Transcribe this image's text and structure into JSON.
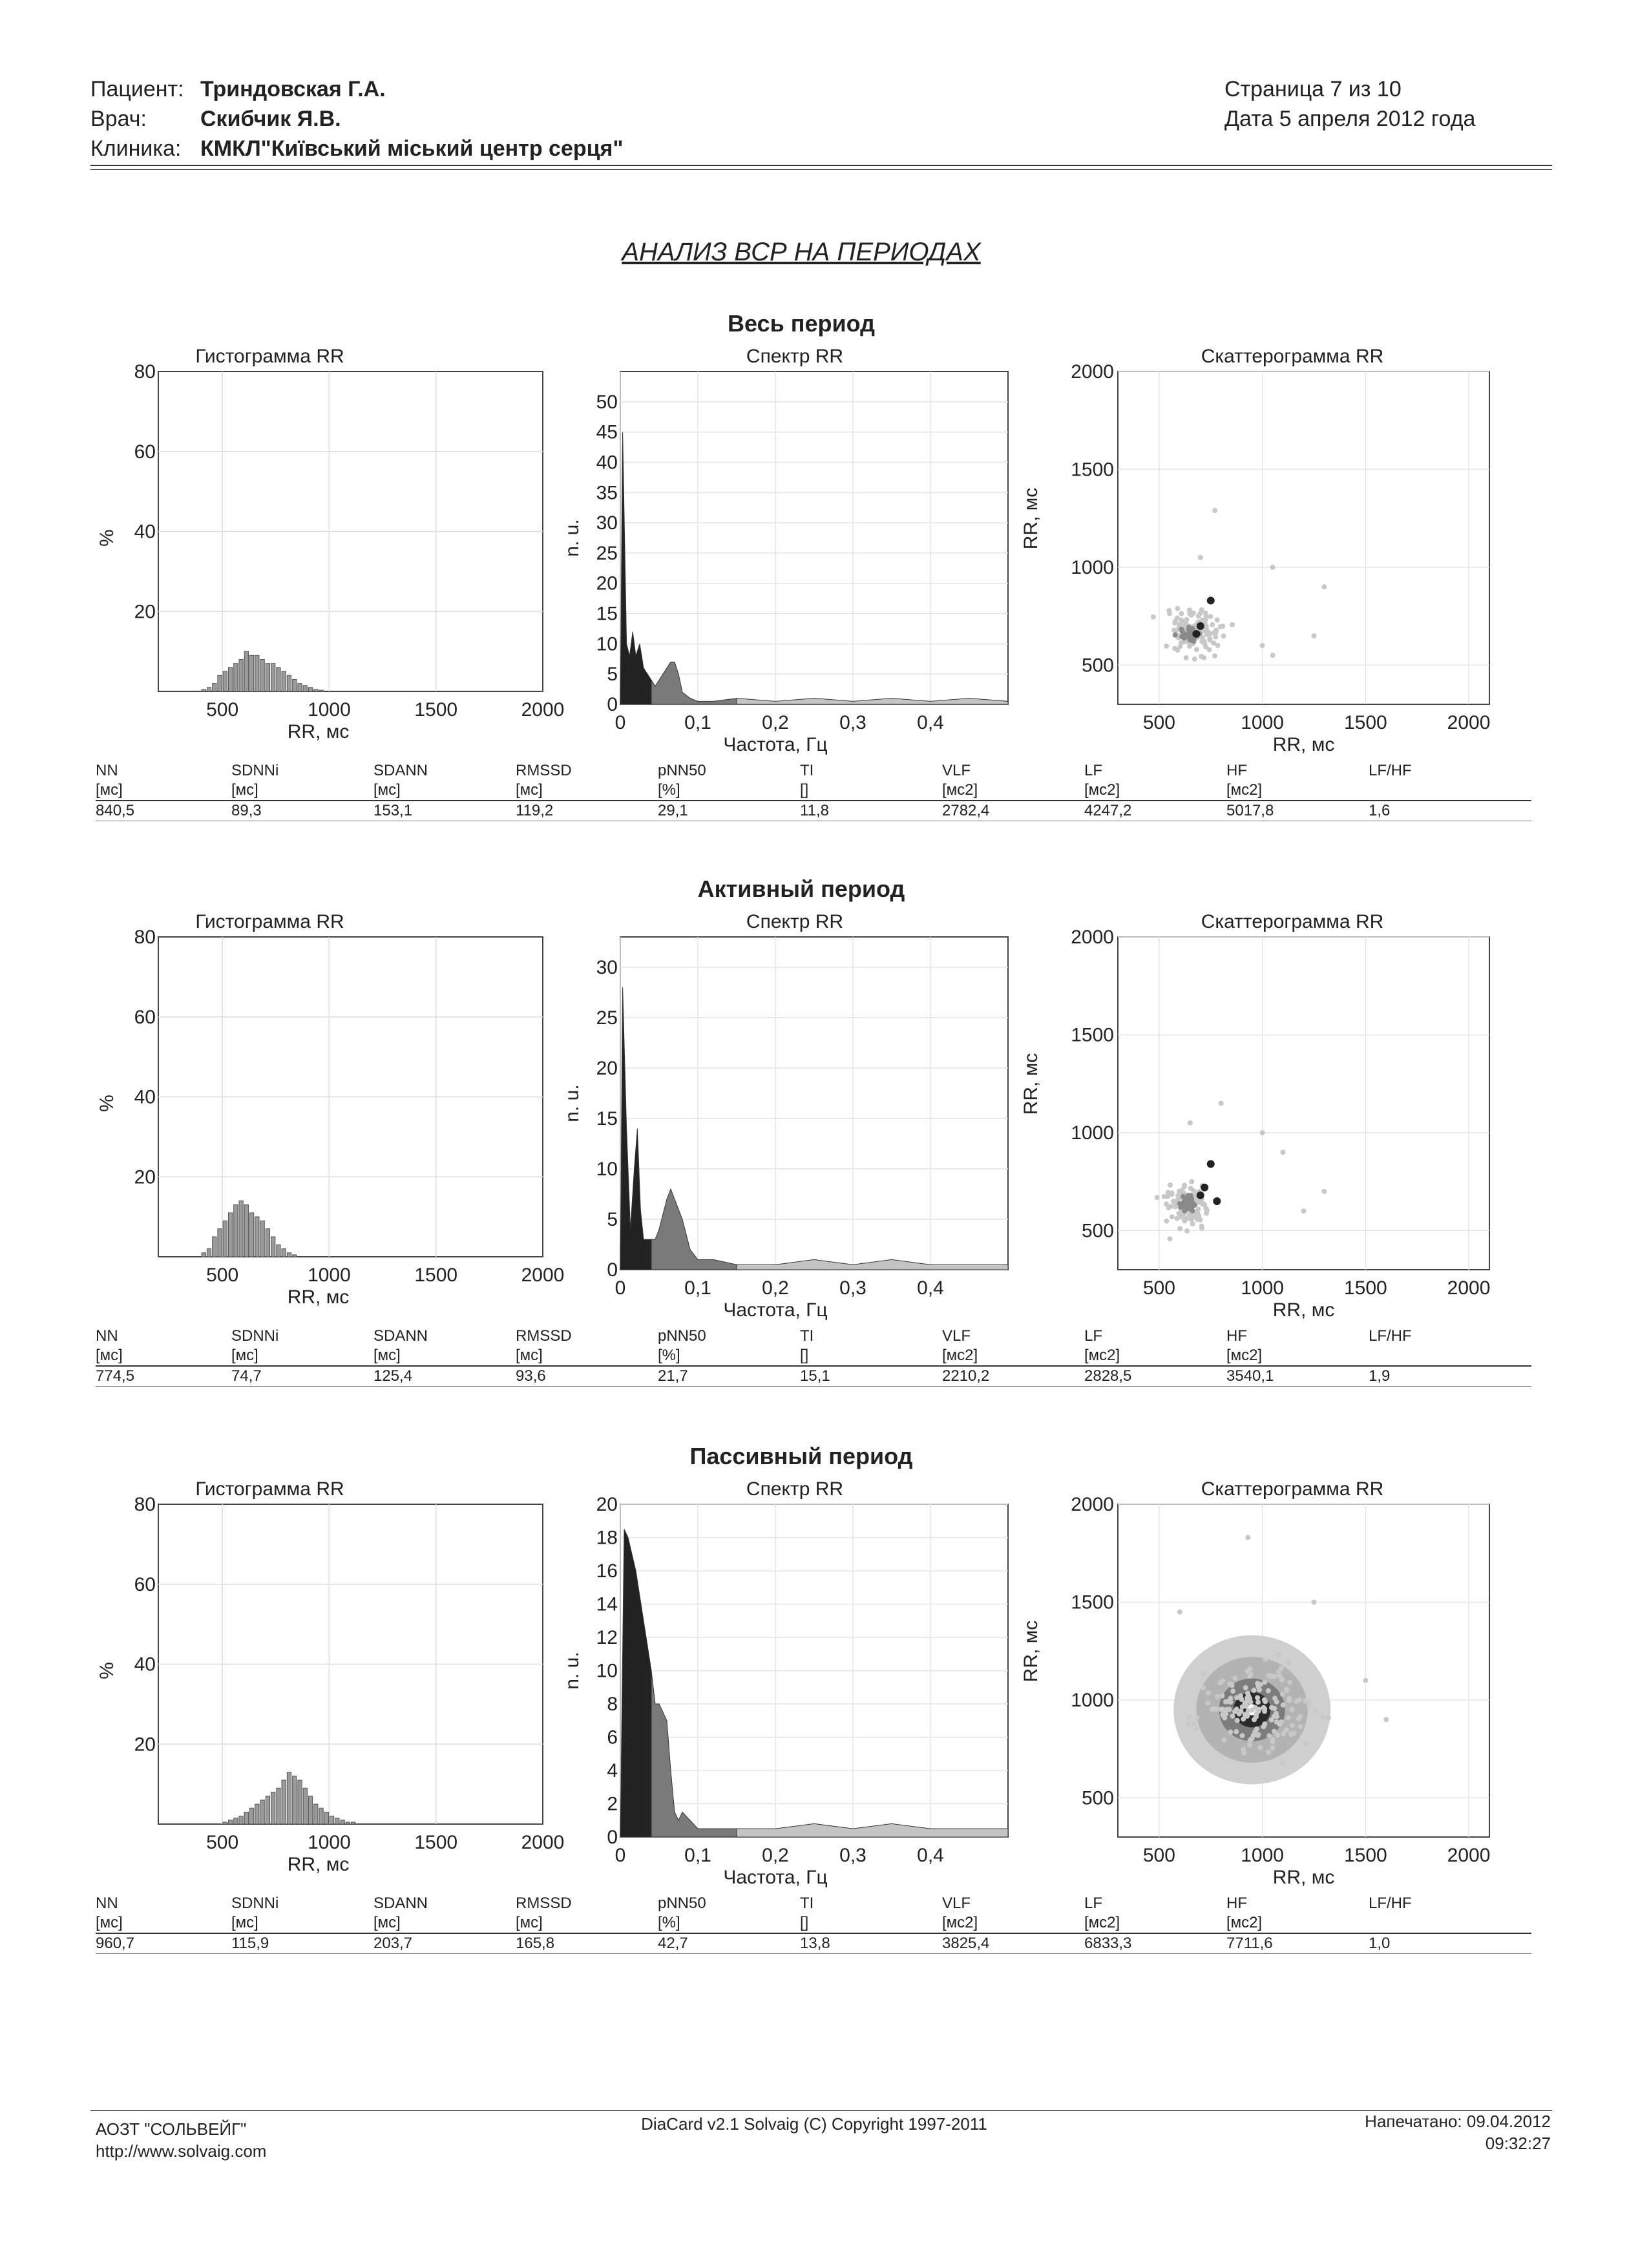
{
  "header": {
    "patient_label": "Пациент:",
    "patient": "Триндовская Г.А.",
    "doctor_label": "Врач:",
    "doctor": "Скибчик Я.В.",
    "clinic_label": "Клиника:",
    "clinic": "КМКЛ\"Київський міський центр серця\"",
    "page": "Страница 7 из 10",
    "date": "Дата 5 апреля 2012 года"
  },
  "title": "АНАЛИЗ ВСР НА ПЕРИОДАХ",
  "chart_titles": {
    "histogram": "Гистограмма RR",
    "spectrum": "Спектр RR",
    "scatter": "Скаттерограмма RR"
  },
  "axis_labels": {
    "hist_x": "RR, мс",
    "hist_y": "%",
    "spec_x": "Частота, Гц",
    "spec_y": "n. u.",
    "scat_x": "RR, мс",
    "scat_y": "RR, мс"
  },
  "stats_headers": [
    "NN",
    "SDNNi",
    "SDANN",
    "RMSSD",
    "pNN50",
    "TI",
    "VLF",
    "LF",
    "HF",
    "LF/HF"
  ],
  "stats_units": [
    "[мс]",
    "[мс]",
    "[мс]",
    "[мс]",
    "[%]",
    "[]",
    "[мс2]",
    "[мс2]",
    "[мс2]",
    ""
  ],
  "sections": [
    {
      "title": "Весь период",
      "stats": [
        "840,5",
        "89,3",
        "153,1",
        "119,2",
        "29,1",
        "11,8",
        "2782,4",
        "4247,2",
        "5017,8",
        "1,6"
      ]
    },
    {
      "title": "Активный период",
      "stats": [
        "774,5",
        "74,7",
        "125,4",
        "93,6",
        "21,7",
        "15,1",
        "2210,2",
        "2828,5",
        "3540,1",
        "1,9"
      ]
    },
    {
      "title": "Пассивный период",
      "stats": [
        "960,7",
        "115,9",
        "203,7",
        "165,8",
        "42,7",
        "13,8",
        "3825,4",
        "6833,3",
        "7711,6",
        "1,0"
      ]
    }
  ],
  "chart_data": [
    {
      "type": "bar",
      "chart": "histogram",
      "section": "Весь период",
      "xlim": [
        200,
        2000
      ],
      "ylim": [
        0,
        80
      ],
      "xticks": [
        500,
        1000,
        1500,
        2000
      ],
      "yticks": [
        20,
        40,
        60,
        80
      ],
      "bins_start": 400,
      "bin_width": 25,
      "values": [
        0.5,
        1,
        2,
        4,
        5,
        6,
        7,
        8,
        10,
        9,
        9,
        8,
        7,
        7,
        6,
        5,
        4,
        3,
        2,
        1.5,
        1,
        0.5,
        0.3
      ]
    },
    {
      "type": "area",
      "chart": "spectrum",
      "section": "Весь период",
      "xlim": [
        0,
        0.5
      ],
      "ylim": [
        0,
        55
      ],
      "xticks": [
        0,
        0.1,
        0.2,
        0.3,
        0.4
      ],
      "yticks": [
        0,
        5,
        10,
        15,
        20,
        25,
        30,
        35,
        40,
        45,
        50
      ],
      "x": [
        0,
        0.003,
        0.008,
        0.012,
        0.016,
        0.02,
        0.025,
        0.03,
        0.035,
        0.04,
        0.045,
        0.05,
        0.055,
        0.06,
        0.065,
        0.07,
        0.075,
        0.08,
        0.09,
        0.1,
        0.12,
        0.15,
        0.2,
        0.25,
        0.3,
        0.35,
        0.4,
        0.45,
        0.5
      ],
      "y": [
        0,
        45,
        10,
        8,
        12,
        8,
        10,
        6,
        5,
        4,
        3,
        4,
        5,
        6,
        7,
        7,
        5,
        2,
        1,
        0.5,
        0.5,
        1,
        0.5,
        1,
        0.5,
        1,
        0.5,
        1,
        0.5
      ],
      "bands": {
        "vlf": [
          0,
          0.04
        ],
        "lf": [
          0.04,
          0.15
        ],
        "hf": [
          0.15,
          0.5
        ]
      }
    },
    {
      "type": "scatter",
      "chart": "scatter",
      "section": "Весь период",
      "xlim": [
        300,
        2100
      ],
      "ylim": [
        300,
        2000
      ],
      "xticks": [
        500,
        1000,
        1500,
        2000
      ],
      "yticks": [
        500,
        1000,
        1500,
        2000
      ],
      "clusters": [
        {
          "cx": 680,
          "cy": 670,
          "sx": 90,
          "sy": 90,
          "n": 120,
          "shade": "light"
        },
        {
          "cx": 650,
          "cy": 650,
          "sx": 30,
          "sy": 30,
          "n": 30,
          "shade": "mid"
        }
      ],
      "points": [
        [
          750,
          830,
          "dark"
        ],
        [
          700,
          700,
          "dark"
        ],
        [
          680,
          660,
          "dark"
        ],
        [
          1050,
          1000,
          "light"
        ],
        [
          1300,
          900,
          "light"
        ],
        [
          1250,
          650,
          "light"
        ],
        [
          700,
          1050,
          "light"
        ],
        [
          770,
          1290,
          "light"
        ],
        [
          1000,
          600,
          "light"
        ],
        [
          1050,
          550,
          "light"
        ]
      ]
    },
    {
      "type": "bar",
      "chart": "histogram",
      "section": "Активный период",
      "xlim": [
        200,
        2000
      ],
      "ylim": [
        0,
        80
      ],
      "xticks": [
        500,
        1000,
        1500,
        2000
      ],
      "yticks": [
        20,
        40,
        60,
        80
      ],
      "bins_start": 400,
      "bin_width": 25,
      "values": [
        1,
        2,
        5,
        7,
        9,
        11,
        13,
        14,
        13,
        11,
        10,
        9,
        7,
        5,
        3,
        2,
        1,
        0.5
      ]
    },
    {
      "type": "area",
      "chart": "spectrum",
      "section": "Активный период",
      "xlim": [
        0,
        0.5
      ],
      "ylim": [
        0,
        33
      ],
      "xticks": [
        0,
        0.1,
        0.2,
        0.3,
        0.4
      ],
      "yticks": [
        0,
        5,
        10,
        15,
        20,
        25,
        30
      ],
      "x": [
        0,
        0.003,
        0.008,
        0.013,
        0.018,
        0.022,
        0.026,
        0.03,
        0.035,
        0.04,
        0.045,
        0.05,
        0.06,
        0.065,
        0.07,
        0.08,
        0.09,
        0.1,
        0.12,
        0.15,
        0.2,
        0.25,
        0.3,
        0.35,
        0.4,
        0.45,
        0.5
      ],
      "y": [
        0,
        28,
        14,
        4,
        10,
        14,
        6,
        3,
        3,
        3,
        3,
        4,
        7,
        8,
        7,
        5,
        2,
        1,
        1,
        0.5,
        0.5,
        1,
        0.5,
        1,
        0.5,
        0.5,
        0.5
      ],
      "bands": {
        "vlf": [
          0,
          0.04
        ],
        "lf": [
          0.04,
          0.15
        ],
        "hf": [
          0.15,
          0.5
        ]
      }
    },
    {
      "type": "scatter",
      "chart": "scatter",
      "section": "Активный период",
      "xlim": [
        300,
        2100
      ],
      "ylim": [
        300,
        2000
      ],
      "xticks": [
        500,
        1000,
        1500,
        2000
      ],
      "yticks": [
        500,
        1000,
        1500,
        2000
      ],
      "clusters": [
        {
          "cx": 650,
          "cy": 630,
          "sx": 80,
          "sy": 80,
          "n": 110,
          "shade": "light"
        },
        {
          "cx": 640,
          "cy": 640,
          "sx": 25,
          "sy": 25,
          "n": 35,
          "shade": "mid"
        }
      ],
      "points": [
        [
          750,
          840,
          "dark"
        ],
        [
          700,
          680,
          "dark"
        ],
        [
          720,
          720,
          "dark"
        ],
        [
          780,
          650,
          "dark"
        ],
        [
          1000,
          1000,
          "light"
        ],
        [
          1100,
          900,
          "light"
        ],
        [
          650,
          1050,
          "light"
        ],
        [
          800,
          1150,
          "light"
        ],
        [
          1200,
          600,
          "light"
        ],
        [
          1300,
          700,
          "light"
        ]
      ]
    },
    {
      "type": "bar",
      "chart": "histogram",
      "section": "Пассивный период",
      "xlim": [
        200,
        2000
      ],
      "ylim": [
        0,
        80
      ],
      "xticks": [
        500,
        1000,
        1500,
        2000
      ],
      "yticks": [
        20,
        40,
        60,
        80
      ],
      "bins_start": 500,
      "bin_width": 25,
      "values": [
        0.5,
        1,
        1.5,
        2,
        3,
        4,
        5,
        6,
        7,
        8,
        9,
        11,
        13,
        12,
        11,
        9,
        7,
        5,
        4,
        3,
        2,
        1.5,
        1,
        0.5,
        0.5
      ]
    },
    {
      "type": "area",
      "chart": "spectrum",
      "section": "Пассивный период",
      "xlim": [
        0,
        0.5
      ],
      "ylim": [
        0,
        20
      ],
      "xticks": [
        0,
        0.1,
        0.2,
        0.3,
        0.4
      ],
      "yticks": [
        0,
        2,
        4,
        6,
        8,
        10,
        12,
        14,
        16,
        18,
        20
      ],
      "x": [
        0,
        0.005,
        0.01,
        0.02,
        0.03,
        0.04,
        0.045,
        0.05,
        0.06,
        0.065,
        0.07,
        0.075,
        0.08,
        0.09,
        0.1,
        0.12,
        0.15,
        0.2,
        0.25,
        0.3,
        0.35,
        0.4,
        0.45,
        0.5
      ],
      "y": [
        0,
        18.5,
        18,
        16,
        13,
        10,
        8,
        8,
        7,
        4,
        1.5,
        1,
        1.5,
        1,
        0.5,
        0.5,
        0.5,
        0.5,
        0.8,
        0.5,
        0.8,
        0.5,
        0.5,
        0.5
      ],
      "bands": {
        "vlf": [
          0,
          0.04
        ],
        "lf": [
          0.04,
          0.15
        ],
        "hf": [
          0.15,
          0.5
        ]
      }
    },
    {
      "type": "scatter",
      "chart": "scatter",
      "section": "Пассивный период",
      "xlim": [
        300,
        2100
      ],
      "ylim": [
        300,
        2000
      ],
      "xticks": [
        500,
        1000,
        1500,
        2000
      ],
      "yticks": [
        500,
        1000,
        1500,
        2000
      ],
      "density": {
        "cx": 950,
        "cy": 950,
        "rings": [
          {
            "r": 380,
            "shade": "#cfcfcf"
          },
          {
            "r": 270,
            "shade": "#b3b3b3"
          },
          {
            "r": 160,
            "shade": "#7c7c7c"
          },
          {
            "r": 90,
            "shade": "#2a2a2a"
          },
          {
            "r": 28,
            "shade": "#ffffff"
          }
        ]
      },
      "clusters": [
        {
          "cx": 960,
          "cy": 960,
          "sx": 190,
          "sy": 150,
          "n": 160,
          "shade": "light"
        }
      ],
      "points": [
        [
          930,
          1830,
          "light"
        ],
        [
          1250,
          1500,
          "light"
        ],
        [
          1500,
          1100,
          "light"
        ],
        [
          600,
          1450,
          "light"
        ],
        [
          1600,
          900,
          "light"
        ]
      ]
    }
  ],
  "footer": {
    "company": "АОЗТ \"СОЛЬВЕЙГ\"",
    "url": "http://www.solvaig.com",
    "software": "DiaCard v2.1 Solvaig (C) Copyright 1997-2011",
    "printed": "Напечатано: 09.04.2012",
    "time": "09:32:27"
  }
}
